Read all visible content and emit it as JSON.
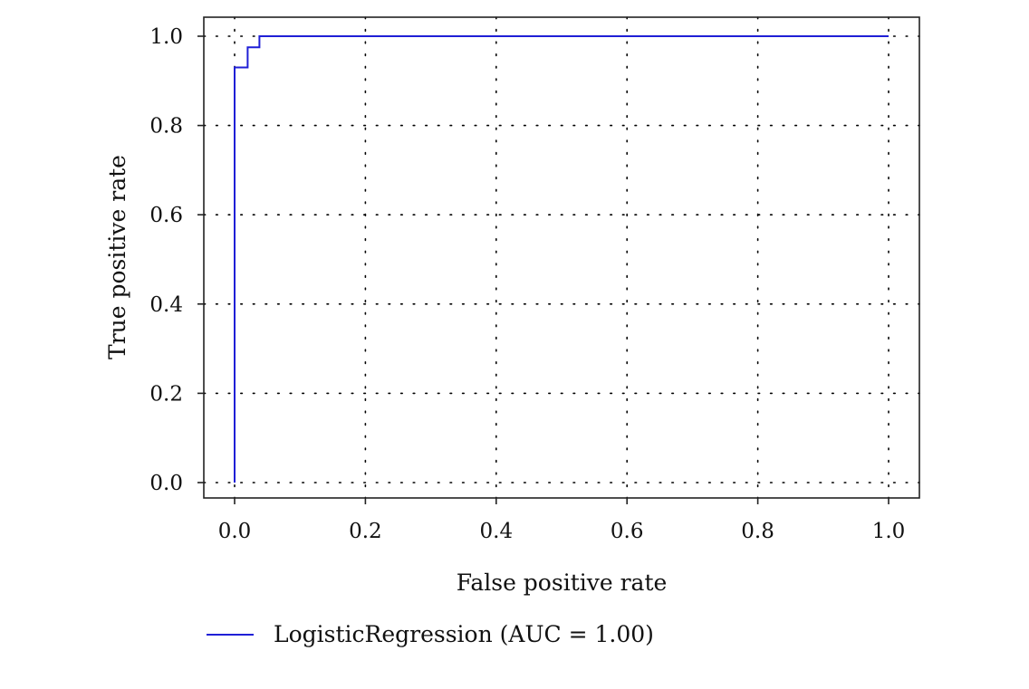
{
  "chart_data": {
    "type": "line",
    "title": "",
    "xlabel": "False positive rate",
    "ylabel": "True positive rate",
    "xlim": [
      0,
      1
    ],
    "ylim": [
      0,
      1
    ],
    "xticks": [
      0.0,
      0.2,
      0.4,
      0.6,
      0.8,
      1.0
    ],
    "yticks": [
      0.0,
      0.2,
      0.4,
      0.6,
      0.8,
      1.0
    ],
    "xtick_labels": [
      "0.0",
      "0.2",
      "0.4",
      "0.6",
      "0.8",
      "1.0"
    ],
    "ytick_labels": [
      "0.0",
      "0.2",
      "0.4",
      "0.6",
      "0.8",
      "1.0"
    ],
    "grid": true,
    "legend_position": "bottom-left",
    "series": [
      {
        "name": "LogisticRegression (AUC = 1.00)",
        "color": "#1f1fd6",
        "x": [
          0.0,
          0.0,
          0.02,
          0.02,
          0.038,
          0.038,
          1.0
        ],
        "y": [
          0.0,
          0.93,
          0.93,
          0.975,
          0.975,
          1.0,
          1.0
        ]
      }
    ]
  }
}
